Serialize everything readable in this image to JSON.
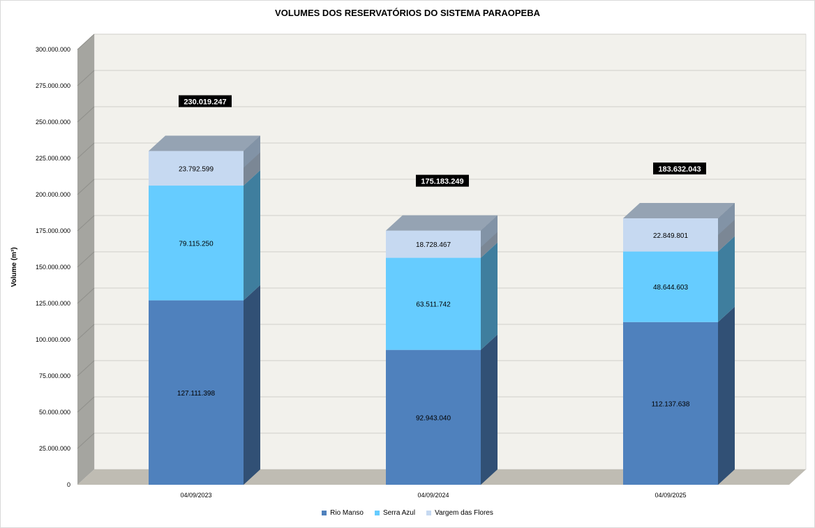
{
  "chart_data": {
    "type": "bar",
    "stacked": true,
    "three_d": true,
    "title": "VOLUMES DOS RESERVATÓRIOS DO SISTEMA PARAOPEBA",
    "ylabel": "Volume (m³)",
    "xlabel": "",
    "ylim": [
      0,
      300000000
    ],
    "ytick_step": 25000000,
    "yticks": [
      "0",
      "25.000.000",
      "50.000.000",
      "75.000.000",
      "100.000.000",
      "125.000.000",
      "150.000.000",
      "175.000.000",
      "200.000.000",
      "225.000.000",
      "250.000.000",
      "275.000.000",
      "300.000.000"
    ],
    "grid": true,
    "legend_position": "bottom",
    "categories": [
      "04/09/2023",
      "04/09/2024",
      "04/09/2025"
    ],
    "series": [
      {
        "name": "Rio Manso",
        "color": "#4f81bd",
        "values": [
          127111398,
          92943040,
          112137638
        ],
        "labels": [
          "127.111.398",
          "92.943.040",
          "112.137.638"
        ]
      },
      {
        "name": "Serra Azul",
        "color": "#66ccff",
        "values": [
          79115250,
          63511742,
          48644603
        ],
        "labels": [
          "79.115.250",
          "63.511.742",
          "48.644.603"
        ]
      },
      {
        "name": "Vargem das Flores",
        "color": "#c6d9f1",
        "values": [
          23792599,
          18728467,
          22849801
        ],
        "labels": [
          "23.792.599",
          "18.728.467",
          "22.849.801"
        ]
      }
    ],
    "totals": [
      "230.019.247",
      "175.183.249",
      "183.632.043"
    ],
    "totals_values": [
      230019247,
      175183249,
      183632043
    ]
  }
}
